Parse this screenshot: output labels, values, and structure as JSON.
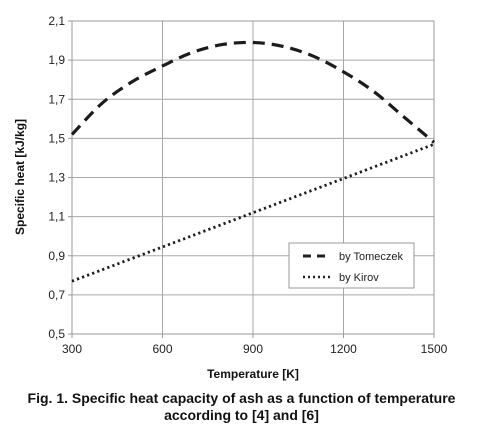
{
  "chart_data": {
    "type": "line",
    "xlabel": "Temperature [K]",
    "ylabel": "Specific heat [kJ/kg]",
    "xlim": [
      300,
      1500
    ],
    "ylim": [
      0.5,
      2.1
    ],
    "xticks": [
      "300",
      "600",
      "900",
      "1200",
      "1500"
    ],
    "yticks": [
      "0,5",
      "0,7",
      "0,9",
      "1,1",
      "1,3",
      "1,5",
      "1,7",
      "1,9",
      "2,1"
    ],
    "grid": true,
    "legend_position": "bottom-right",
    "series": [
      {
        "name": "by Tomeczek",
        "style": "dashed",
        "x": [
          300,
          400,
          500,
          600,
          700,
          800,
          900,
          1000,
          1100,
          1200,
          1300,
          1400,
          1500
        ],
        "y": [
          1.52,
          1.68,
          1.79,
          1.87,
          1.94,
          1.98,
          1.99,
          1.97,
          1.92,
          1.84,
          1.74,
          1.61,
          1.48
        ]
      },
      {
        "name": "by Kirov",
        "style": "dotted",
        "x": [
          300,
          600,
          900,
          1200,
          1500
        ],
        "y": [
          0.77,
          0.945,
          1.12,
          1.295,
          1.47
        ]
      }
    ]
  },
  "caption": {
    "line1": "Fig. 1. Specific heat capacity of ash as a function of temperature",
    "line2": "according to [4] and [6]"
  }
}
